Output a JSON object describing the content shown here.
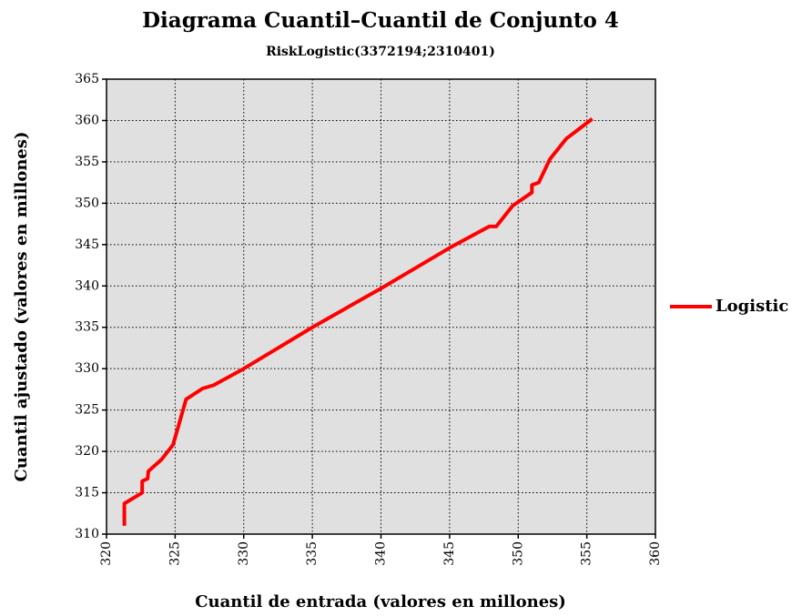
{
  "chart_data": {
    "type": "line",
    "title": "Diagrama Cuantil–Cuantil de Conjunto 4",
    "subtitle": "RiskLogistic(3372194;2310401)",
    "xlabel": "Cuantil de entrada (valores en millones)",
    "ylabel": "Cuantil ajustado (valores en millones)",
    "x": [
      321.3,
      321.3,
      322.6,
      322.6,
      323.0,
      323.05,
      324.0,
      324.85,
      325.8,
      327.0,
      327.8,
      329.9,
      335.0,
      340.1,
      345.1,
      347.9,
      348.4,
      349.6,
      351.0,
      351.0,
      351.5,
      352.3,
      353.5,
      355.4
    ],
    "series": [
      {
        "name": "Logistic",
        "color": "#ff0000",
        "values": [
          311.0,
          313.7,
          315.0,
          316.4,
          316.7,
          317.6,
          319.0,
          320.8,
          326.3,
          327.6,
          328.0,
          329.9,
          335.0,
          339.8,
          344.7,
          347.2,
          347.2,
          349.7,
          351.3,
          352.2,
          352.5,
          355.3,
          357.8,
          360.2
        ]
      }
    ],
    "xlim": [
      320,
      360
    ],
    "xticks": [
      320,
      325,
      330,
      335,
      340,
      345,
      350,
      355,
      360
    ],
    "ylim": [
      310,
      365
    ],
    "yticks": [
      310,
      315,
      320,
      325,
      330,
      335,
      340,
      345,
      350,
      355,
      360,
      365
    ],
    "grid": true,
    "legend": "right"
  }
}
